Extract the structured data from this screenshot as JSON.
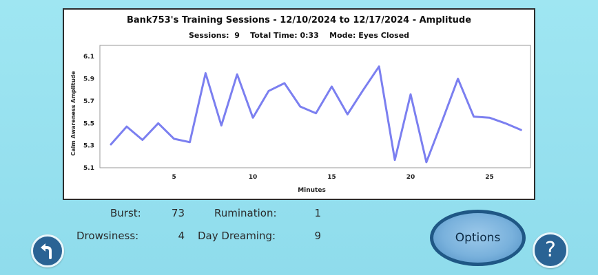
{
  "chart_data": {
    "type": "line",
    "title": "Bank753's Training Sessions - 12/10/2024 to 12/17/2024 - Amplitude",
    "subtitle": "Sessions:  9    Total Time: 0:33    Mode: Eyes Closed",
    "xlabel": "Minutes",
    "ylabel": "Calm Awareness Amplitude",
    "xlim": [
      0.3,
      27.6
    ],
    "ylim": [
      5.1,
      6.2
    ],
    "xticks": [
      5,
      10,
      15,
      20,
      25
    ],
    "yticks": [
      5.1,
      5.3,
      5.5,
      5.7,
      5.9,
      6.1
    ],
    "grid": false,
    "color": "#7b7ff0",
    "series": [
      {
        "x": [
          1,
          2,
          3,
          4,
          5,
          6,
          7,
          8,
          9,
          10,
          11,
          12,
          13,
          14,
          15,
          16,
          17,
          18,
          19,
          20,
          21,
          22,
          23,
          24,
          25,
          26,
          27
        ],
        "values": [
          5.31,
          5.47,
          5.35,
          5.5,
          5.36,
          5.33,
          5.95,
          5.48,
          5.94,
          5.55,
          5.79,
          5.86,
          5.65,
          5.59,
          5.83,
          5.58,
          5.8,
          6.01,
          5.17,
          5.76,
          5.15,
          5.52,
          5.9,
          5.56,
          5.55,
          5.5,
          5.44
        ]
      }
    ]
  },
  "stats": {
    "burst_label": "Burst:",
    "burst_value": "73",
    "rumination_label": "Rumination:",
    "rumination_value": "1",
    "drowsiness_label": "Drowsiness:",
    "drowsiness_value": "4",
    "day_dreaming_label": "Day Dreaming:",
    "day_dreaming_value": "9"
  },
  "buttons": {
    "options_label": "Options",
    "help_label": "?",
    "back_icon": "back-arrow-icon"
  },
  "colors": {
    "background": "#9fe6f2",
    "button_blue": "#2a6394",
    "line": "#7b7ff0"
  }
}
